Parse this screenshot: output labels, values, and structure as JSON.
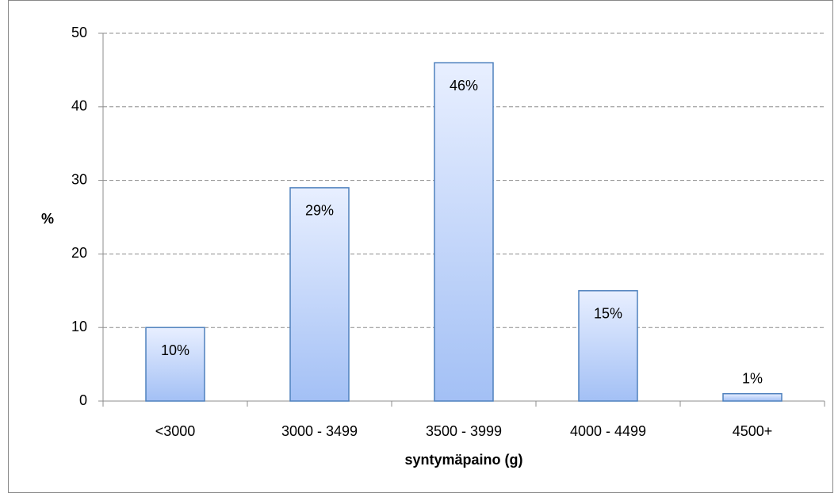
{
  "chart_data": {
    "type": "bar",
    "x_label": "syntymäpaino (g)",
    "y_label": "%",
    "categories": [
      "<3000",
      "3000 - 3499",
      "3500 - 3999",
      "4000 - 4499",
      "4500+"
    ],
    "values": [
      10,
      29,
      46,
      15,
      1
    ],
    "value_labels": [
      "10%",
      "29%",
      "46%",
      "15%",
      "1%"
    ],
    "color": "#4f81bd",
    "ylim": [
      0,
      50
    ],
    "yticks": [
      0,
      10,
      20,
      30,
      40,
      50
    ],
    "grid": true
  }
}
